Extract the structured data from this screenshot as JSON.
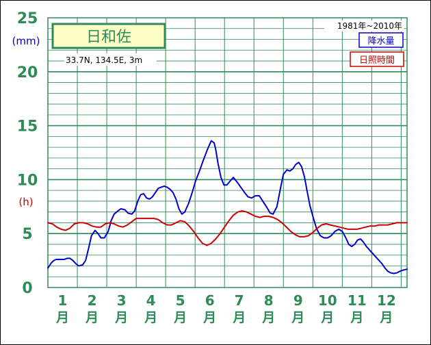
{
  "chart_data": {
    "type": "line",
    "station": "日和佐",
    "coords": "33.7N,  134.5E,  3m",
    "period": "1981年~2010年",
    "y_unit_left": "(mm)",
    "y_unit_right": "(h)",
    "y_ticks": [
      "25",
      "20",
      "15",
      "10",
      "5",
      "0"
    ],
    "ylim": [
      0,
      25
    ],
    "xlim": [
      0.5,
      12.7
    ],
    "month_labels": [
      "1",
      "2",
      "3",
      "4",
      "5",
      "6",
      "7",
      "8",
      "9",
      "10",
      "11",
      "12"
    ],
    "month_char": "月",
    "grid": true,
    "legend_position": "top-right",
    "series": [
      {
        "name": "降水量",
        "color": "#0000cc",
        "x": [
          0.5,
          0.62,
          0.7,
          0.78,
          0.9,
          1.05,
          1.15,
          1.25,
          1.35,
          1.45,
          1.55,
          1.68,
          1.78,
          1.88,
          1.98,
          2.1,
          2.2,
          2.3,
          2.42,
          2.55,
          2.65,
          2.75,
          2.88,
          2.98,
          3.12,
          3.22,
          3.35,
          3.45,
          3.55,
          3.65,
          3.75,
          3.85,
          3.95,
          4.05,
          4.15,
          4.25,
          4.35,
          4.45,
          4.55,
          4.65,
          4.75,
          4.85,
          4.95,
          5.05,
          5.15,
          5.28,
          5.4,
          5.52,
          5.65,
          5.78,
          5.92,
          6.05,
          6.15,
          6.2,
          6.28,
          6.38,
          6.48,
          6.58,
          6.7,
          6.8,
          6.92,
          7.05,
          7.18,
          7.3,
          7.42,
          7.55,
          7.68,
          7.8,
          7.92,
          8.05,
          8.15,
          8.28,
          8.4,
          8.5,
          8.62,
          8.72,
          8.82,
          8.92,
          9.02,
          9.12,
          9.22,
          9.3,
          9.4,
          9.52,
          9.62,
          9.75,
          9.88,
          10.0,
          10.12,
          10.25,
          10.38,
          10.5,
          10.62,
          10.72,
          10.82,
          10.92,
          11.02,
          11.12,
          11.22,
          11.32,
          11.45,
          11.55,
          11.65,
          11.75,
          11.85,
          11.95,
          12.05,
          12.15,
          12.25,
          12.35,
          12.45,
          12.55,
          12.7
        ],
        "values": [
          1.8,
          2.3,
          2.5,
          2.6,
          2.6,
          2.6,
          2.7,
          2.7,
          2.5,
          2.2,
          2.0,
          2.1,
          2.5,
          3.6,
          4.8,
          5.3,
          5.0,
          4.6,
          4.6,
          5.2,
          6.2,
          6.8,
          7.1,
          7.3,
          7.2,
          6.9,
          6.8,
          7.1,
          8.0,
          8.6,
          8.7,
          8.3,
          8.2,
          8.4,
          8.8,
          9.2,
          9.3,
          9.4,
          9.3,
          9.1,
          8.8,
          8.2,
          7.3,
          6.8,
          7.0,
          7.8,
          8.8,
          9.9,
          10.8,
          11.8,
          12.8,
          13.6,
          13.4,
          12.8,
          11.5,
          10.2,
          9.5,
          9.5,
          9.9,
          10.2,
          9.8,
          9.3,
          8.8,
          8.4,
          8.3,
          8.5,
          8.5,
          8.0,
          7.5,
          6.9,
          6.8,
          7.5,
          9.2,
          10.5,
          10.9,
          10.8,
          11.0,
          11.4,
          11.6,
          11.2,
          10.2,
          9.0,
          7.6,
          6.4,
          5.5,
          4.8,
          4.6,
          4.6,
          4.8,
          5.2,
          5.4,
          5.2,
          4.6,
          4.0,
          3.8,
          4.0,
          4.4,
          4.5,
          4.2,
          3.8,
          3.4,
          3.1,
          2.8,
          2.5,
          2.2,
          1.8,
          1.5,
          1.35,
          1.3,
          1.35,
          1.5,
          1.6,
          1.7
        ],
        "comment": "x values are month-index positions along the month axis"
      },
      {
        "name": "日照時間",
        "color": "#cc0000",
        "x": [
          0.5,
          0.65,
          0.8,
          0.95,
          1.1,
          1.25,
          1.4,
          1.55,
          1.7,
          1.85,
          2.0,
          2.15,
          2.3,
          2.45,
          2.6,
          2.75,
          2.9,
          3.05,
          3.2,
          3.35,
          3.5,
          3.65,
          3.8,
          3.95,
          4.1,
          4.25,
          4.4,
          4.55,
          4.7,
          4.85,
          5.0,
          5.15,
          5.3,
          5.45,
          5.6,
          5.75,
          5.9,
          6.05,
          6.2,
          6.35,
          6.5,
          6.65,
          6.8,
          6.95,
          7.1,
          7.25,
          7.4,
          7.55,
          7.7,
          7.85,
          8.0,
          8.15,
          8.3,
          8.45,
          8.6,
          8.75,
          8.9,
          9.05,
          9.2,
          9.35,
          9.5,
          9.65,
          9.8,
          9.95,
          10.1,
          10.25,
          10.4,
          10.55,
          10.7,
          10.85,
          11.0,
          11.15,
          11.3,
          11.45,
          11.6,
          11.75,
          11.9,
          12.05,
          12.2,
          12.35,
          12.5,
          12.7
        ],
        "values": [
          6.0,
          5.9,
          5.6,
          5.4,
          5.3,
          5.5,
          5.9,
          6.0,
          6.0,
          5.9,
          5.7,
          5.6,
          5.6,
          5.9,
          6.0,
          5.9,
          5.7,
          5.6,
          5.8,
          6.1,
          6.4,
          6.4,
          6.4,
          6.4,
          6.4,
          6.3,
          6.0,
          5.8,
          5.8,
          6.0,
          6.2,
          6.1,
          5.7,
          5.2,
          4.6,
          4.1,
          3.9,
          4.1,
          4.5,
          5.0,
          5.6,
          6.2,
          6.7,
          7.0,
          7.1,
          7.0,
          6.8,
          6.6,
          6.5,
          6.6,
          6.6,
          6.5,
          6.3,
          6.0,
          5.6,
          5.2,
          4.9,
          4.7,
          4.7,
          4.8,
          5.1,
          5.5,
          5.8,
          5.9,
          5.8,
          5.7,
          5.6,
          5.5,
          5.4,
          5.4,
          5.4,
          5.5,
          5.6,
          5.7,
          5.7,
          5.8,
          5.8,
          5.8,
          5.9,
          6.0,
          6.0,
          6.0
        ]
      }
    ]
  }
}
